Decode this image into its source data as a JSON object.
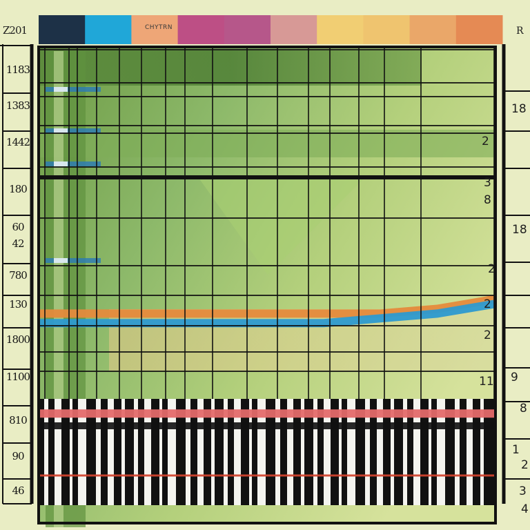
{
  "chart_data": {
    "type": "table",
    "title": "",
    "corner_left": "Z201",
    "corner_right": "R",
    "header_swatch_text": "CHYTRN",
    "header_colors": [
      "#1d3147",
      "#20a7d8",
      "#eea677",
      "#bd4f85",
      "#b6578a",
      "#d79996",
      "#f1ce73",
      "#efc46f",
      "#eaa769",
      "#e58a54"
    ],
    "left_labels": [
      "1183",
      "1383",
      "1442",
      "180",
      "60",
      "42",
      "780",
      "130",
      "1800",
      "1100",
      "810",
      "90",
      "46"
    ],
    "right_labels": [
      "18",
      "2",
      "3",
      "8",
      "18",
      "2",
      "2",
      "2",
      "11",
      "9",
      "8",
      "1",
      "2",
      "3",
      "4"
    ],
    "series_lines": [
      {
        "color": "#e58a3c",
        "values": [
          0.56,
          0.56,
          0.56,
          0.56,
          0.56,
          0.56,
          0.56,
          0.55,
          0.53
        ]
      },
      {
        "color": "#2d9ad0",
        "values": [
          0.58,
          0.58,
          0.58,
          0.58,
          0.58,
          0.58,
          0.57,
          0.56,
          0.54
        ]
      },
      {
        "color": "#e46a6a",
        "values": [
          0.77,
          0.77,
          0.77,
          0.77,
          0.77,
          0.77,
          0.77,
          0.77,
          0.77
        ]
      },
      {
        "color": "#d2452f",
        "values": [
          0.9,
          0.9,
          0.9,
          0.9,
          0.9,
          0.9,
          0.9,
          0.9,
          0.9
        ]
      }
    ],
    "accent_colors": {
      "grid": "#111111",
      "green_dark": "#5d8f3d",
      "green_mid": "#8cb768",
      "green_light": "#cfdf9a"
    }
  }
}
